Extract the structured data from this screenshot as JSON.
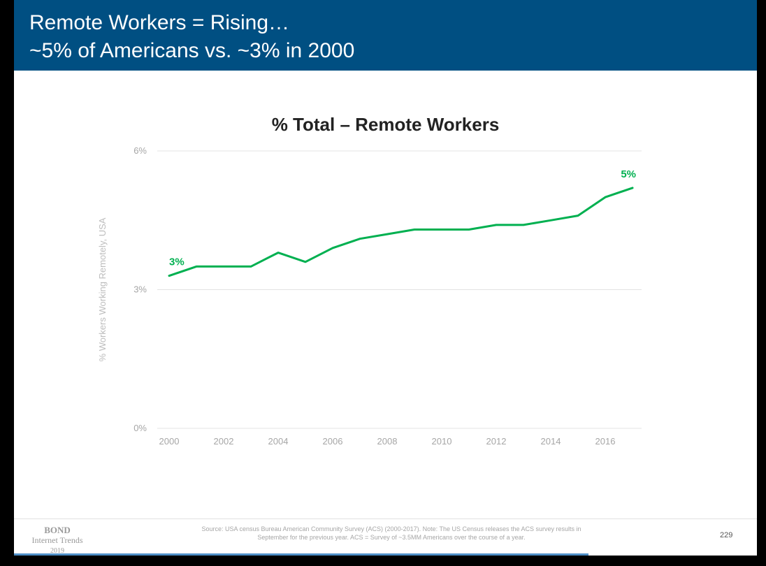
{
  "header": {
    "line1": "Remote Workers = Rising…",
    "line2": "~5% of Americans vs. ~3% in 2000"
  },
  "chart_data": {
    "type": "line",
    "title": "% Total – Remote Workers",
    "xlabel": "",
    "ylabel": "% Workers Working Remotely, USA",
    "x": [
      2000,
      2001,
      2002,
      2003,
      2004,
      2005,
      2006,
      2007,
      2008,
      2009,
      2010,
      2011,
      2012,
      2013,
      2014,
      2015,
      2016,
      2017
    ],
    "series": [
      {
        "values": [
          3.3,
          3.5,
          3.5,
          3.5,
          3.8,
          3.6,
          3.9,
          4.1,
          4.2,
          4.3,
          4.3,
          4.3,
          4.4,
          4.4,
          4.5,
          4.6,
          5.0,
          5.2
        ]
      }
    ],
    "ylim": [
      0,
      6
    ],
    "yticks": [
      {
        "value": 0,
        "label": "0%"
      },
      {
        "value": 3,
        "label": "3%"
      },
      {
        "value": 6,
        "label": "6%"
      }
    ],
    "xticks": [
      2000,
      2002,
      2004,
      2006,
      2008,
      2010,
      2012,
      2014,
      2016
    ],
    "xlim": [
      2000,
      2017
    ],
    "annotations": [
      {
        "x": 2000,
        "y": 3.3,
        "label": "3%"
      },
      {
        "x": 2017,
        "y": 5.2,
        "label": "5%"
      }
    ],
    "line_color": "#00b050",
    "grid": "horizontal"
  },
  "footer": {
    "brand_line1": "BOND",
    "brand_line2": "Internet Trends",
    "brand_line3": "2019",
    "source_line1": "Source: USA census Bureau American Community Survey (ACS) (2000-2017).  Note: The US Census releases the ACS survey results in",
    "source_line2": "September for the previous year.  ACS = Survey of ~3.5MM Americans over the course of a year.",
    "page_number": "229"
  },
  "colors": {
    "header_bg": "#004f82",
    "accent_line": "#00b050",
    "bottom_bar": "#4f8fc7"
  }
}
